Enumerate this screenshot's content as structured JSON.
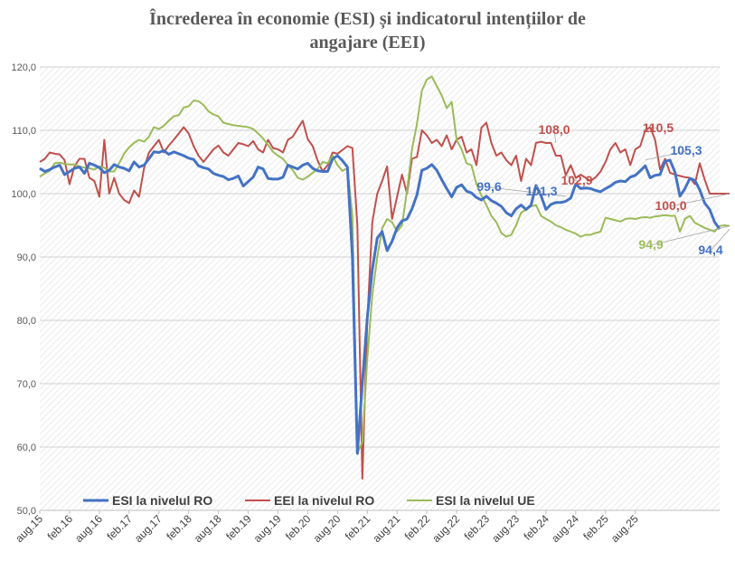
{
  "chart_data": {
    "type": "line",
    "title_line1": "Încrederea în economie (ESI) și indicatorul intențiilor de",
    "title_line2": "angajare (EEI)",
    "ylim": [
      50,
      120
    ],
    "yticks": [
      "50,0",
      "60,0",
      "70,0",
      "80,0",
      "90,0",
      "100,0",
      "110,0",
      "120,0"
    ],
    "ytick_values": [
      50,
      60,
      70,
      80,
      90,
      100,
      110,
      120
    ],
    "xticks": [
      "aug.15",
      "feb.16",
      "aug.16",
      "feb.17",
      "aug.17",
      "feb.18",
      "aug.18",
      "feb.19",
      "aug.19",
      "feb.20",
      "aug.20",
      "feb.21",
      "aug.21",
      "feb.22",
      "aug.22",
      "feb.23",
      "aug.23",
      "feb.24",
      "aug.24",
      "feb.25",
      "aug.25"
    ],
    "grid": true,
    "legend_position": "bottom-inside",
    "series": [
      {
        "name": "ESI la nivelul RO",
        "color": "#4472c4",
        "values": [
          104.0,
          103.5,
          103.8,
          104.2,
          104.5,
          103.0,
          103.5,
          104.0,
          104.2,
          103.2,
          104.8,
          104.5,
          104.1,
          103.3,
          103.7,
          104.6,
          104.2,
          104.0,
          103.6,
          105.0,
          104.2,
          104.5,
          105.5,
          106.6,
          106.5,
          106.8,
          106.2,
          106.6,
          106.3,
          106.0,
          105.6,
          105.4,
          104.4,
          104.1,
          103.9,
          103.2,
          102.9,
          102.7,
          102.2,
          102.4,
          102.8,
          101.2,
          101.9,
          102.6,
          104.2,
          103.9,
          102.4,
          102.3,
          102.3,
          102.6,
          104.5,
          104.2,
          103.9,
          104.5,
          104.8,
          104.0,
          103.6,
          103.5,
          103.5,
          105.5,
          106.0,
          105.2,
          104.2,
          90.0,
          59.0,
          70.0,
          80.5,
          88.0,
          93.0,
          94.0,
          91.0,
          92.5,
          94.6,
          95.7,
          96.0,
          97.6,
          99.8,
          103.7,
          104.0,
          104.6,
          103.7,
          102.2,
          100.8,
          99.5,
          101.0,
          101.4,
          100.4,
          100.1,
          99.4,
          99.0,
          99.6,
          98.9,
          98.5,
          98.0,
          97.0,
          96.5,
          97.6,
          98.2,
          97.5,
          98.2,
          101.3,
          99.7,
          97.5,
          98.3,
          98.6,
          98.6,
          98.8,
          99.3,
          101.5,
          100.8,
          100.9,
          100.8,
          100.5,
          100.3,
          100.8,
          101.2,
          101.8,
          102.0,
          101.9,
          102.6,
          102.9,
          103.6,
          104.4,
          102.5,
          102.9,
          103.0,
          105.1,
          105.3,
          103.4,
          99.6,
          100.8,
          102.4,
          102.1,
          100.6,
          98.5,
          97.5,
          95.5,
          94.4
        ]
      },
      {
        "name": "EEI la nivelul RO",
        "color": "#c0504d",
        "values": [
          105.0,
          105.5,
          106.5,
          106.3,
          106.2,
          105.3,
          101.5,
          104.3,
          105.5,
          105.5,
          102.5,
          102.0,
          99.5,
          108.5,
          100.0,
          102.5,
          100.0,
          99.0,
          98.5,
          100.5,
          99.5,
          104.0,
          106.5,
          107.5,
          108.5,
          106.5,
          107.6,
          108.5,
          109.5,
          110.5,
          109.5,
          107.5,
          106.0,
          105.0,
          106.0,
          107.0,
          107.6,
          106.5,
          106.0,
          107.0,
          108.0,
          107.8,
          107.5,
          108.3,
          107.0,
          106.5,
          108.5,
          107.2,
          107.0,
          106.5,
          108.5,
          109.0,
          110.3,
          111.5,
          108.6,
          107.5,
          105.2,
          103.5,
          104.5,
          106.5,
          106.3,
          106.9,
          107.5,
          107.2,
          95.0,
          55.0,
          80.0,
          95.5,
          100.0,
          102.0,
          104.3,
          96.0,
          99.5,
          103.0,
          100.0,
          105.5,
          105.8,
          110.0,
          109.2,
          108.0,
          108.5,
          107.5,
          109.2,
          107.0,
          108.5,
          109.0,
          106.5,
          107.0,
          104.5,
          110.4,
          111.2,
          108.0,
          106.0,
          106.5,
          105.3,
          104.5,
          106.0,
          102.0,
          105.5,
          104.5,
          108.0,
          108.2,
          108.0,
          108.0,
          106.0,
          106.0,
          102.9,
          104.5,
          102.5,
          103.0,
          102.5,
          102.0,
          102.6,
          103.5,
          105.0,
          107.0,
          108.0,
          106.5,
          107.0,
          104.5,
          107.0,
          107.5,
          110.0,
          110.5,
          108.5,
          103.8,
          105.5,
          103.3,
          103.0,
          102.8,
          102.6,
          102.5,
          101.5,
          104.8,
          102.2,
          100.0,
          100.0,
          100.0,
          100.0,
          100.0
        ]
      },
      {
        "name": "ESI la nivelul UE",
        "color": "#9bbb59",
        "values": [
          102.7,
          103.2,
          103.6,
          104.8,
          104.9,
          104.7,
          104.6,
          104.6,
          104.3,
          104.1,
          104.0,
          103.8,
          104.3,
          104.1,
          103.5,
          103.5,
          104.8,
          106.3,
          107.3,
          108.0,
          108.5,
          108.2,
          109.0,
          110.5,
          110.2,
          110.7,
          111.5,
          112.2,
          112.4,
          113.6,
          113.8,
          114.7,
          114.6,
          114.0,
          113.0,
          112.5,
          112.2,
          111.2,
          111.0,
          110.8,
          110.7,
          110.6,
          110.5,
          110.2,
          109.5,
          108.7,
          107.7,
          106.6,
          106.0,
          105.5,
          104.5,
          103.7,
          102.5,
          102.2,
          102.7,
          103.3,
          103.9,
          105.0,
          104.8,
          106.0,
          104.5,
          103.6,
          104.0,
          96.5,
          59.0,
          60.8,
          74.0,
          84.0,
          90.0,
          94.5,
          96.0,
          95.5,
          94.0,
          95.0,
          100.5,
          107.0,
          111.0,
          116.3,
          118.0,
          118.5,
          117.0,
          115.5,
          113.5,
          114.5,
          108.5,
          107.0,
          104.8,
          104.5,
          101.5,
          99.7,
          98.2,
          96.5,
          95.5,
          93.8,
          93.2,
          93.5,
          95.0,
          97.0,
          97.5,
          98.0,
          98.2,
          96.5,
          96.0,
          95.6,
          95.0,
          94.7,
          94.3,
          94.0,
          93.7,
          93.2,
          93.5,
          93.5,
          93.8,
          94.0,
          96.2,
          96.0,
          95.8,
          95.6,
          96.0,
          96.1,
          96.0,
          96.2,
          96.3,
          96.2,
          96.4,
          96.5,
          96.6,
          96.5,
          96.5,
          94.0,
          96.0,
          96.5,
          95.4,
          95.0,
          94.6,
          94.3,
          94.0,
          94.9,
          95.0,
          94.9
        ]
      }
    ],
    "annotations": [
      {
        "text": "99,6",
        "color": "#4472c4",
        "x": 106,
        "y": 99.6
      },
      {
        "text": "101,3",
        "color": "#4472c4",
        "x": 100,
        "y": 101.3
      },
      {
        "text": "105,3",
        "color": "#4472c4",
        "x": 122,
        "y": 105.3
      },
      {
        "text": "94,4",
        "color": "#4472c4",
        "x": 139,
        "y": 94.4
      },
      {
        "text": "108,0",
        "color": "#c0504d",
        "x": 104,
        "y": 108.0
      },
      {
        "text": "102,9",
        "color": "#c0504d",
        "x": 106,
        "y": 102.9
      },
      {
        "text": "110,5",
        "color": "#c0504d",
        "x": 123,
        "y": 110.5
      },
      {
        "text": "100,0",
        "color": "#c0504d",
        "x": 139,
        "y": 100.0
      },
      {
        "text": "94,9",
        "color": "#9bbb59",
        "x": 139,
        "y": 94.9
      }
    ]
  }
}
